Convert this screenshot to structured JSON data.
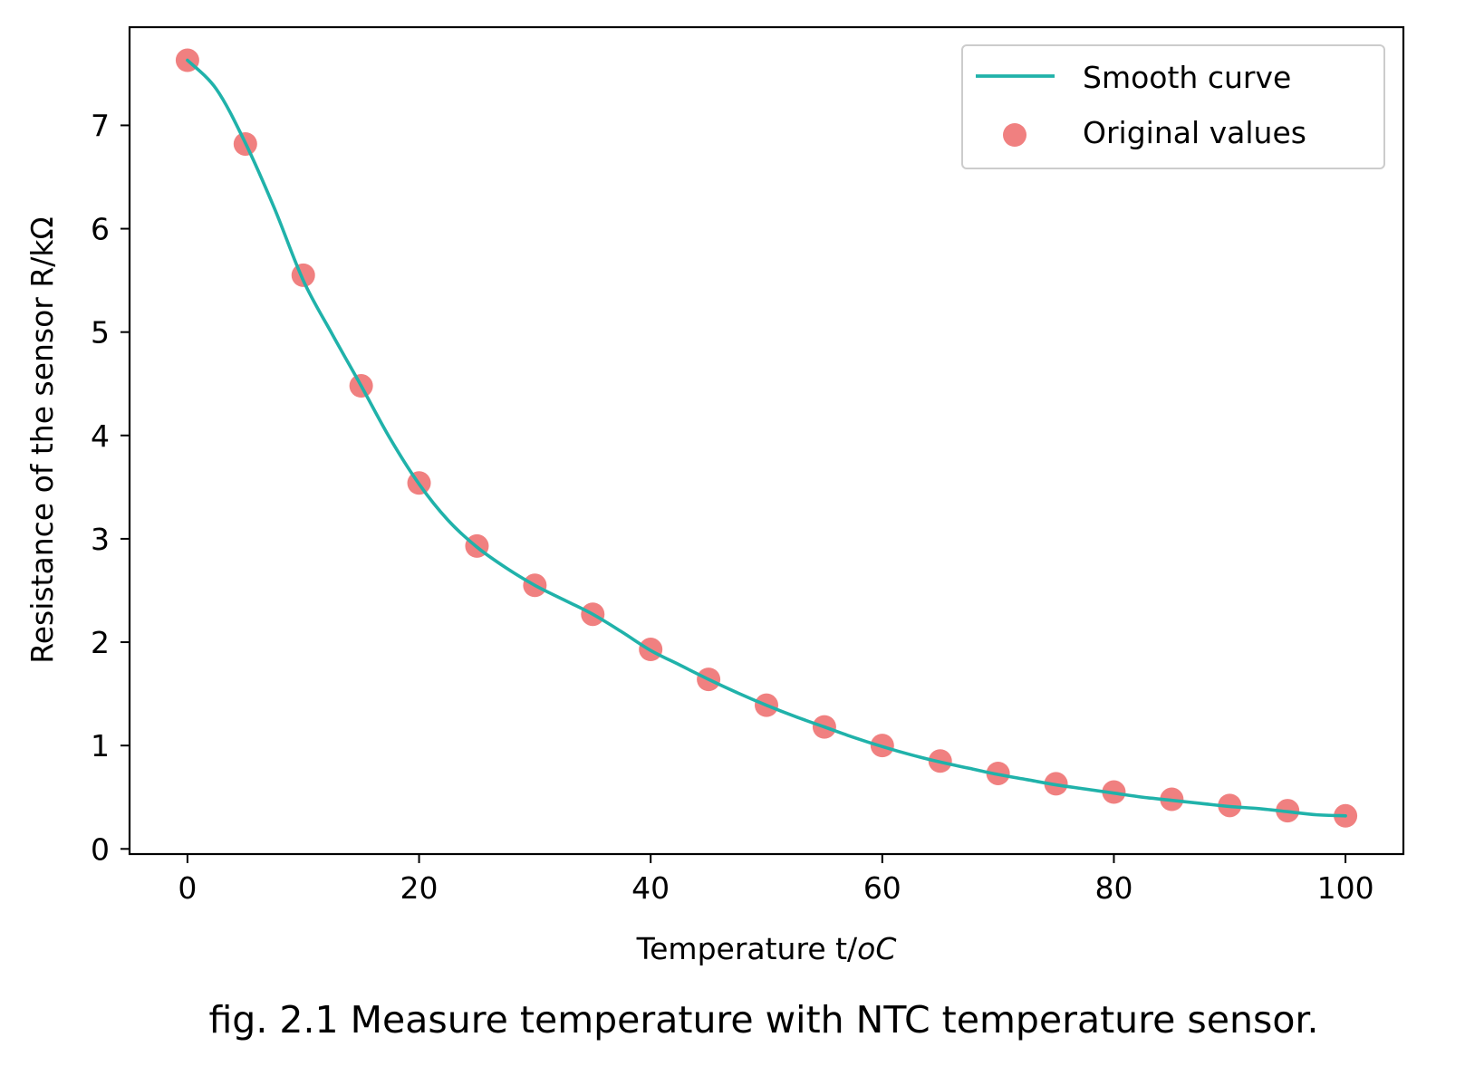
{
  "chart_data": {
    "type": "line+scatter",
    "xlabel": "Temperature t/",
    "xlabel_unit": "oC",
    "ylabel": "Resistance of the sensor R/kΩ",
    "xlim": [
      -5,
      105
    ],
    "ylim": [
      -0.05,
      7.95
    ],
    "xticks": [
      0,
      20,
      40,
      60,
      80,
      100
    ],
    "yticks": [
      0,
      1,
      2,
      3,
      4,
      5,
      6,
      7
    ],
    "grid": false,
    "legend_position": "top-right",
    "series": [
      {
        "name": "Smooth curve",
        "kind": "line",
        "color": "#20b2aa",
        "x": [
          0,
          2.5,
          5,
          7.5,
          10,
          12.5,
          15,
          17.5,
          20,
          22.5,
          25,
          27.5,
          30,
          32.5,
          35,
          37.5,
          40,
          42.5,
          45,
          47.5,
          50,
          52.5,
          55,
          57.5,
          60,
          62.5,
          65,
          67.5,
          70,
          72.5,
          75,
          77.5,
          80,
          82.5,
          85,
          87.5,
          90,
          92.5,
          95,
          97.5,
          100
        ],
        "y": [
          7.63,
          7.35,
          6.83,
          6.2,
          5.5,
          4.98,
          4.48,
          3.97,
          3.53,
          3.18,
          2.92,
          2.72,
          2.55,
          2.41,
          2.27,
          2.1,
          1.92,
          1.78,
          1.64,
          1.51,
          1.39,
          1.28,
          1.18,
          1.08,
          0.99,
          0.91,
          0.84,
          0.78,
          0.72,
          0.67,
          0.62,
          0.58,
          0.54,
          0.5,
          0.47,
          0.44,
          0.41,
          0.39,
          0.36,
          0.33,
          0.32
        ]
      },
      {
        "name": "Original values",
        "kind": "scatter",
        "color": "#f08080",
        "x": [
          0,
          5,
          10,
          15,
          20,
          25,
          30,
          35,
          40,
          45,
          50,
          55,
          60,
          65,
          70,
          75,
          80,
          85,
          90,
          95,
          100
        ],
        "y": [
          7.63,
          6.82,
          5.55,
          4.48,
          3.54,
          2.93,
          2.55,
          2.27,
          1.93,
          1.64,
          1.39,
          1.18,
          1.0,
          0.85,
          0.73,
          0.63,
          0.55,
          0.48,
          0.42,
          0.37,
          0.32
        ]
      }
    ]
  },
  "caption": "fig. 2.1 Measure temperature with NTC temperature sensor."
}
